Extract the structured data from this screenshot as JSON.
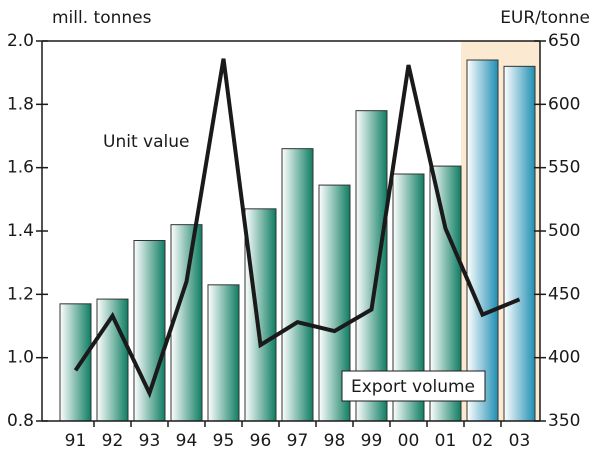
{
  "chart_data": {
    "type": "bar-line",
    "y_label": "mill. tonnes",
    "y2_label": "EUR/tonne",
    "categories": [
      "91",
      "92",
      "93",
      "94",
      "95",
      "96",
      "97",
      "98",
      "99",
      "00",
      "01",
      "02",
      "03"
    ],
    "highlight": [
      "02",
      "03"
    ],
    "series": [
      {
        "name": "Export volume",
        "type": "bar",
        "color": "#0e7d62",
        "highlight_color": "#1f8eb3",
        "values": [
          1.17,
          1.185,
          1.37,
          1.42,
          1.23,
          1.47,
          1.66,
          1.545,
          1.78,
          1.58,
          1.605,
          1.94,
          1.92
        ]
      },
      {
        "name": "Unit value",
        "type": "line",
        "axis": "y2",
        "color": "#1a1a1a",
        "values": [
          390,
          433,
          372,
          460,
          636,
          410,
          428,
          421,
          438,
          631,
          502,
          434,
          446
        ]
      }
    ],
    "ylim": [
      0.8,
      2.0
    ],
    "yticks": [
      0.8,
      {
        "value": 1.0,
        "label": "1.0"
      },
      1.2,
      1.4,
      1.6,
      1.8,
      {
        "value": 2.0,
        "label": "2.0"
      }
    ],
    "y2lim": [
      350,
      650
    ],
    "y2ticks": [
      350,
      400,
      450,
      500,
      550,
      600,
      650
    ],
    "grid": false
  }
}
